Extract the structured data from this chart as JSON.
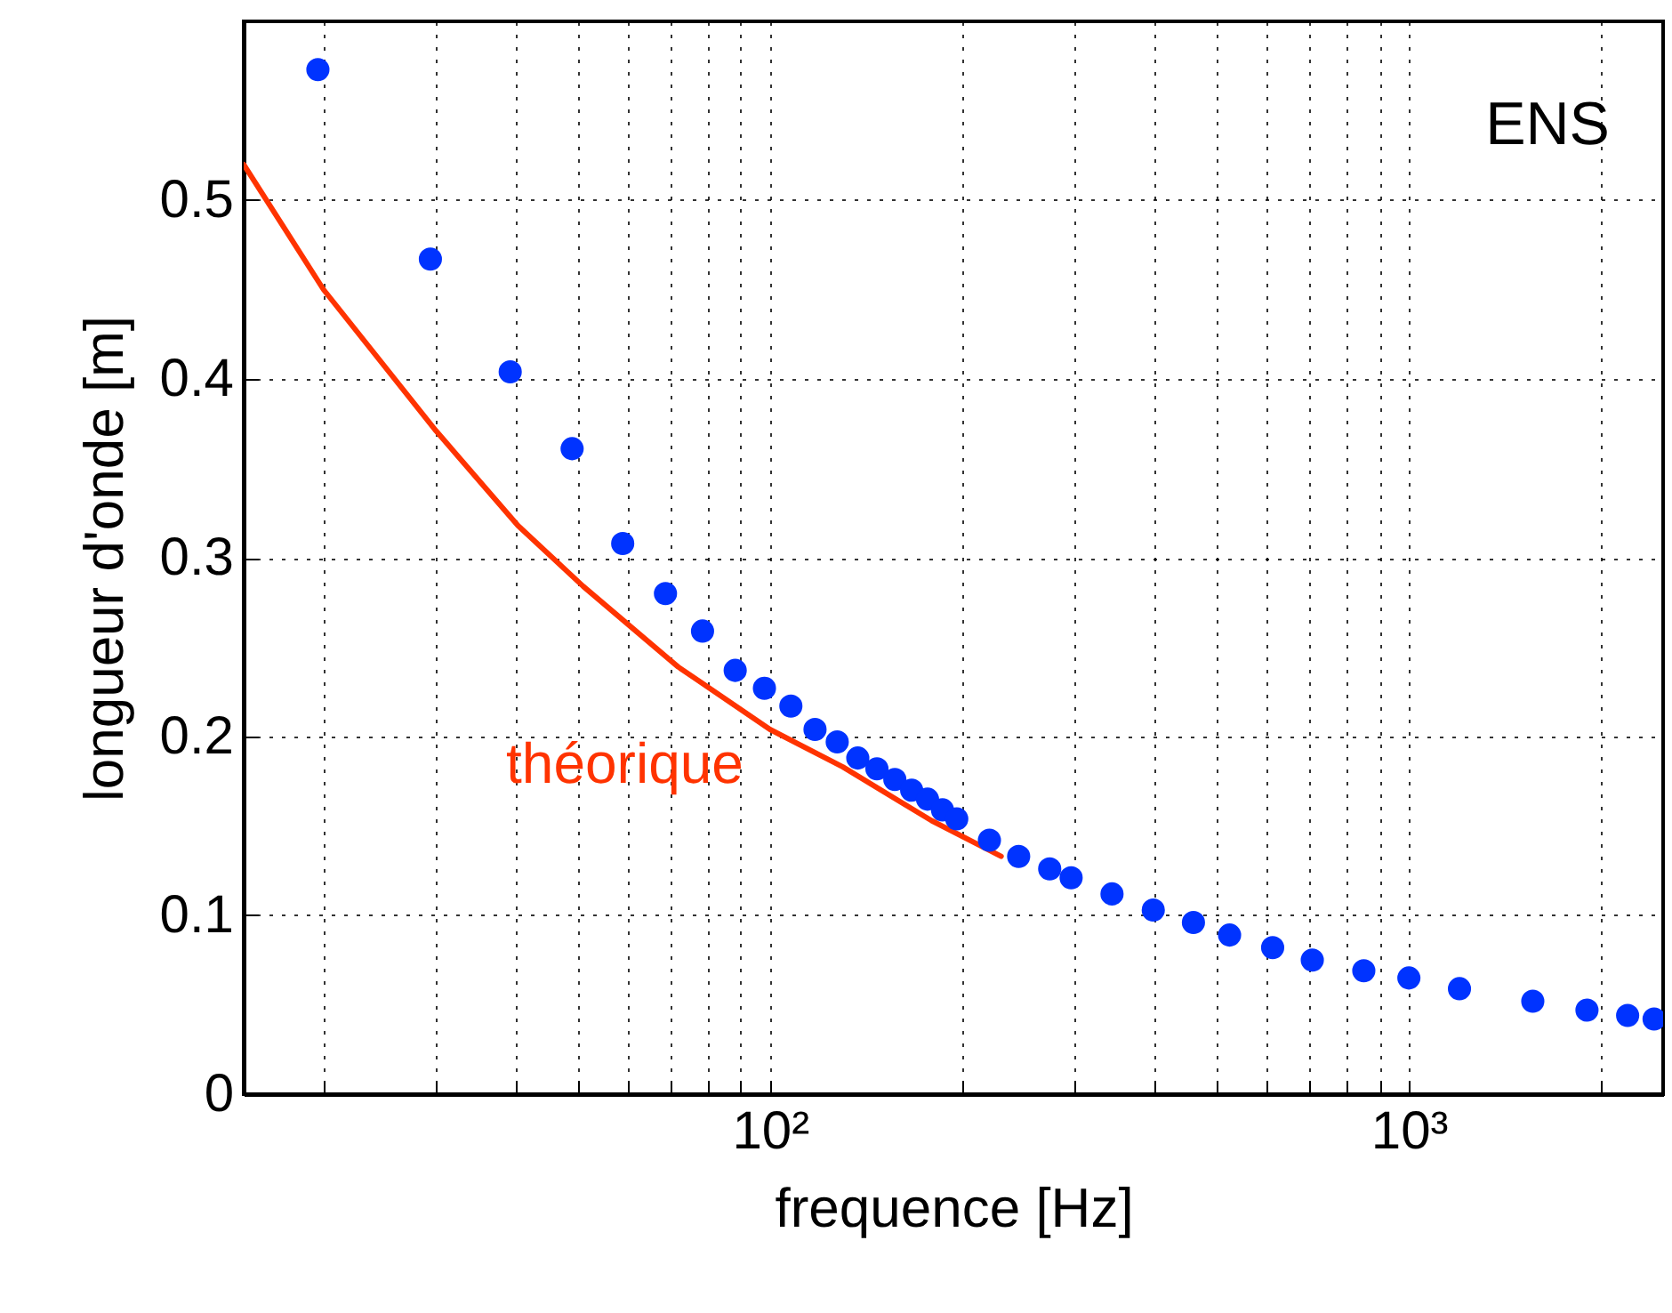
{
  "chart_data": {
    "type": "scatter",
    "xlabel": "frequence [Hz]",
    "ylabel": "longueur d'onde [m]",
    "log": "x",
    "xlim": [
      15,
      2500
    ],
    "ylim": [
      0,
      0.6
    ],
    "xticks": [
      {
        "value": 20,
        "label": null
      },
      {
        "value": 30,
        "label": null
      },
      {
        "value": 40,
        "label": null
      },
      {
        "value": 50,
        "label": null
      },
      {
        "value": 60,
        "label": null
      },
      {
        "value": 70,
        "label": null
      },
      {
        "value": 80,
        "label": null
      },
      {
        "value": 90,
        "label": null
      },
      {
        "value": 100,
        "label": "10²"
      },
      {
        "value": 200,
        "label": null
      },
      {
        "value": 300,
        "label": null
      },
      {
        "value": 400,
        "label": null
      },
      {
        "value": 500,
        "label": null
      },
      {
        "value": 600,
        "label": null
      },
      {
        "value": 700,
        "label": null
      },
      {
        "value": 800,
        "label": null
      },
      {
        "value": 900,
        "label": null
      },
      {
        "value": 1000,
        "label": "10³"
      },
      {
        "value": 2000,
        "label": null
      }
    ],
    "yticks": [
      0,
      0.1,
      0.2,
      0.3,
      0.4,
      0.5
    ],
    "grid": true,
    "annotations": [
      "ENS"
    ],
    "series": [
      {
        "type": "line",
        "name": "théorique",
        "color": "#ff3300",
        "line_style": "solid",
        "marker": "none",
        "x": [
          15,
          20,
          30,
          40.3,
          51,
          71.8,
          100,
          130,
          179,
          230
        ],
        "values": [
          0.52,
          0.45,
          0.371,
          0.318,
          0.284,
          0.239,
          0.204,
          0.183,
          0.153,
          0.133
        ]
      },
      {
        "marker": "circle",
        "color": "#0033ff",
        "x": [
          19.6,
          29.4,
          39.2,
          49,
          58.8,
          68.6,
          78.4,
          88.2,
          98,
          107.8,
          117.6,
          127.4,
          137.2,
          147,
          156.8,
          166.6,
          176.4,
          186.2,
          196,
          220.5,
          245,
          274,
          296,
          343,
          398,
          460,
          524,
          612,
          706,
          850,
          1000,
          1200,
          1563,
          1900,
          2200,
          2420
        ],
        "values": [
          0.573,
          0.467,
          0.404,
          0.361,
          0.308,
          0.28,
          0.259,
          0.237,
          0.227,
          0.217,
          0.204,
          0.197,
          0.188,
          0.182,
          0.176,
          0.17,
          0.165,
          0.159,
          0.154,
          0.142,
          0.133,
          0.126,
          0.121,
          0.112,
          0.103,
          0.096,
          0.089,
          0.082,
          0.075,
          0.069,
          0.065,
          0.059,
          0.052,
          0.047,
          0.044,
          0.042
        ]
      }
    ]
  }
}
